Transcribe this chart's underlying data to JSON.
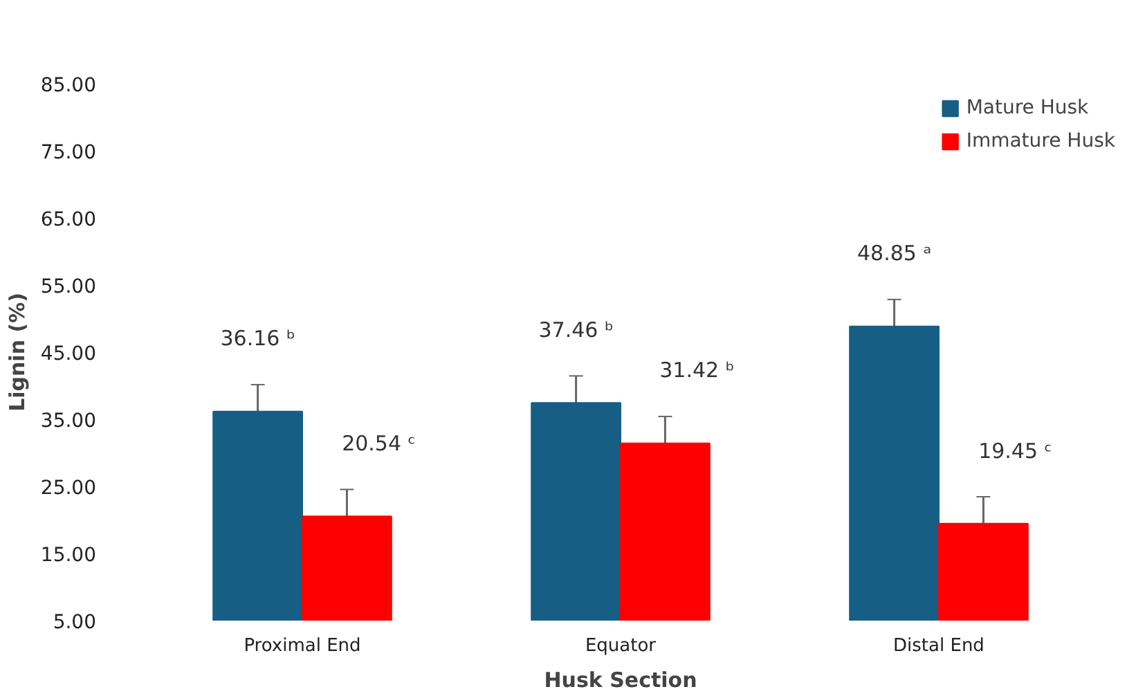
{
  "chart_data": {
    "type": "bar",
    "xlabel": "Husk Section",
    "ylabel": "Lignin (%)",
    "categories": [
      "Proximal End",
      "Equator",
      "Distal End"
    ],
    "series": [
      {
        "name": "Mature Husk",
        "color": "#175e85",
        "values": [
          36.16,
          37.46,
          48.85
        ],
        "errors": [
          4,
          4,
          4
        ],
        "value_labels": [
          "36.16 ᵇ",
          "37.46 ᵇ",
          "48.85 ᵃ"
        ]
      },
      {
        "name": "Immature Husk",
        "color": "#ff0000",
        "values": [
          20.54,
          31.42,
          19.45
        ],
        "errors": [
          4,
          4,
          4
        ],
        "value_labels": [
          "20.54 ᶜ",
          "31.42 ᵇ",
          "19.45 ᶜ"
        ]
      }
    ],
    "ylim": [
      5,
      85
    ],
    "yticks": [
      {
        "value": 5,
        "label": "5.00"
      },
      {
        "value": 15,
        "label": "15.00"
      },
      {
        "value": 25,
        "label": "25.00"
      },
      {
        "value": 35,
        "label": "35.00"
      },
      {
        "value": 45,
        "label": "45.00"
      },
      {
        "value": 55,
        "label": "55.00"
      },
      {
        "value": 65,
        "label": "65.00"
      },
      {
        "value": 75,
        "label": "75.00"
      },
      {
        "value": 85,
        "label": "85.00"
      }
    ],
    "grid": false,
    "legend": "top right"
  }
}
